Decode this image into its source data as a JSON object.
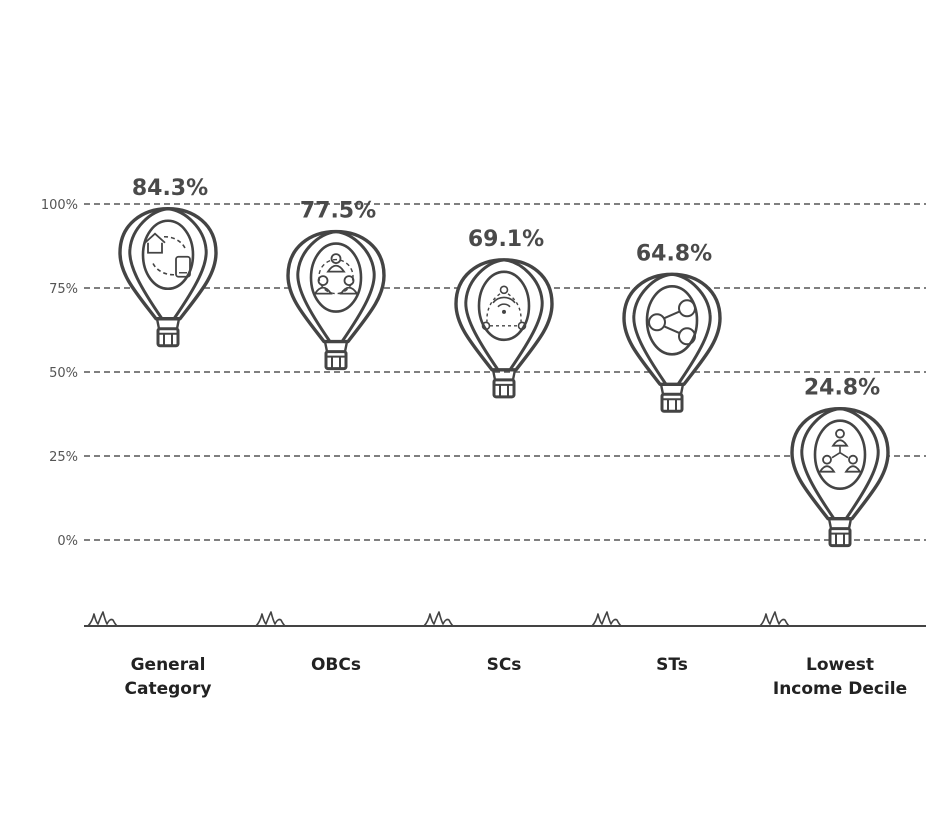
{
  "chart_data": {
    "type": "bar",
    "style": "hot-air-balloon pictogram",
    "categories": [
      "General Category",
      "OBCs",
      "SCs",
      "STs",
      "Lowest Income Decile"
    ],
    "category_lines": [
      [
        "General",
        "Category"
      ],
      [
        "OBCs"
      ],
      [
        "SCs"
      ],
      [
        "STs"
      ],
      [
        "Lowest",
        "Income Decile"
      ]
    ],
    "values": [
      84.3,
      77.5,
      69.1,
      64.8,
      24.8
    ],
    "value_labels": [
      "84.3%",
      "77.5%",
      "69.1%",
      "64.8%",
      "24.8%"
    ],
    "icons": [
      "home-phone-icon",
      "group-cycle-icon",
      "broadcast-network-icon",
      "share-icon",
      "hierarchy-icon"
    ],
    "yticks": [
      0,
      25,
      50,
      75,
      100
    ],
    "ytick_labels": [
      "0%",
      "25%",
      "50%",
      "75%",
      "100%"
    ],
    "ylim": [
      0,
      100
    ],
    "grid": true,
    "xlabel": "",
    "ylabel": "",
    "colors": {
      "stroke": "#444444",
      "label": "#4a4a4a",
      "axis": "#555555"
    }
  }
}
